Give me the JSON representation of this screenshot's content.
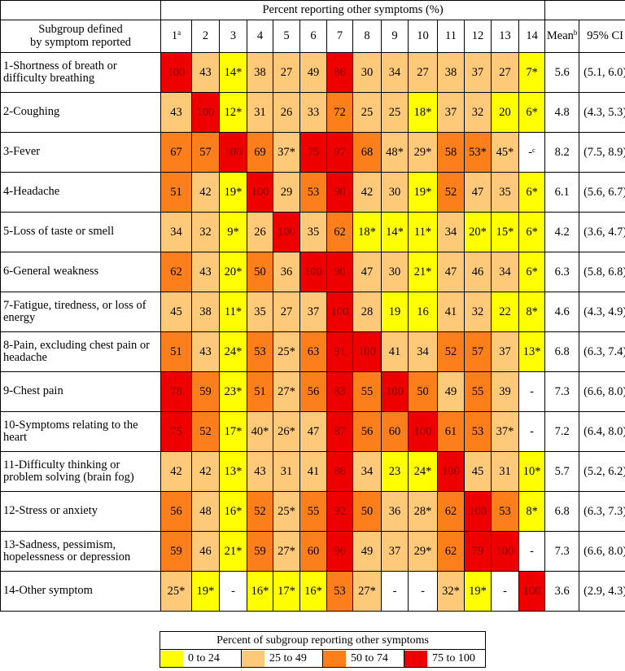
{
  "header": {
    "spanning_title": "Percent reporting other symptoms (%)",
    "row_header_line1": "Subgroup defined",
    "row_header_line2": "by symptom reported",
    "col1": "1",
    "col1_sup": "a",
    "cols": [
      "2",
      "3",
      "4",
      "5",
      "6",
      "7",
      "8",
      "9",
      "10",
      "11",
      "12",
      "13",
      "14"
    ],
    "mean_label": "Mean",
    "mean_sup": "b",
    "ci_label": "95% CI"
  },
  "rows": [
    {
      "label": "1-Shortness of breath or difficulty breathing",
      "cells": [
        "100",
        "43",
        "14*",
        "38",
        "27",
        "49",
        "86",
        "30",
        "34",
        "27",
        "38",
        "37",
        "27",
        "7*"
      ],
      "colors": [
        "r",
        "l",
        "y",
        "l",
        "l",
        "l",
        "r",
        "l",
        "l",
        "l",
        "l",
        "l",
        "l",
        "y"
      ],
      "mean": "5.6",
      "ci": "(5.1, 6.0)"
    },
    {
      "label": "2-Coughing",
      "cells": [
        "43",
        "100",
        "12*",
        "31",
        "26",
        "33",
        "72",
        "25",
        "25",
        "18*",
        "37",
        "32",
        "20",
        "6*"
      ],
      "colors": [
        "l",
        "r",
        "y",
        "l",
        "l",
        "l",
        "o",
        "l",
        "l",
        "y",
        "l",
        "l",
        "y",
        "y"
      ],
      "mean": "4.8",
      "ci": "(4.3, 5.3)"
    },
    {
      "label": "3-Fever",
      "cells": [
        "67",
        "57",
        "100",
        "69",
        "37*",
        "75",
        "97",
        "68",
        "48*",
        "29*",
        "58",
        "53*",
        "45*",
        "-ᶜ"
      ],
      "colors": [
        "o",
        "o",
        "r",
        "o",
        "l",
        "r",
        "r",
        "o",
        "l",
        "l",
        "o",
        "o",
        "l",
        "w"
      ],
      "mean": "8.2",
      "ci": "(7.5, 8.9)"
    },
    {
      "label": "4-Headache",
      "cells": [
        "51",
        "42",
        "19*",
        "100",
        "29",
        "53",
        "90",
        "42",
        "30",
        "19*",
        "52",
        "47",
        "35",
        "6*"
      ],
      "colors": [
        "o",
        "l",
        "y",
        "r",
        "l",
        "o",
        "r",
        "l",
        "l",
        "y",
        "o",
        "l",
        "l",
        "y"
      ],
      "mean": "6.1",
      "ci": "(5.6, 6.7)"
    },
    {
      "label": "5-Loss of taste or smell",
      "cells": [
        "34",
        "32",
        "9*",
        "26",
        "100",
        "35",
        "62",
        "18*",
        "14*",
        "11*",
        "34",
        "20*",
        "15*",
        "6*"
      ],
      "colors": [
        "l",
        "l",
        "y",
        "l",
        "r",
        "l",
        "o",
        "y",
        "y",
        "y",
        "l",
        "y",
        "y",
        "y"
      ],
      "mean": "4.2",
      "ci": "(3.6, 4.7)"
    },
    {
      "label": "6-General weakness",
      "cells": [
        "62",
        "43",
        "20*",
        "50",
        "36",
        "100",
        "90",
        "47",
        "30",
        "21*",
        "47",
        "46",
        "34",
        "6*"
      ],
      "colors": [
        "o",
        "l",
        "y",
        "o",
        "l",
        "r",
        "r",
        "l",
        "l",
        "y",
        "l",
        "l",
        "l",
        "y"
      ],
      "mean": "6.3",
      "ci": "(5.8, 6.8)"
    },
    {
      "label": "7-Fatigue, tiredness, or loss of energy",
      "cells": [
        "45",
        "38",
        "11*",
        "35",
        "27",
        "37",
        "100",
        "28",
        "19",
        "16",
        "41",
        "32",
        "22",
        "8*"
      ],
      "colors": [
        "l",
        "l",
        "y",
        "l",
        "l",
        "l",
        "r",
        "l",
        "y",
        "y",
        "l",
        "l",
        "y",
        "y"
      ],
      "mean": "4.6",
      "ci": "(4.3, 4.9)"
    },
    {
      "label": "8-Pain, excluding chest pain or headache",
      "cells": [
        "51",
        "43",
        "24*",
        "53",
        "25*",
        "63",
        "91",
        "100",
        "41",
        "34",
        "52",
        "57",
        "37",
        "13*"
      ],
      "colors": [
        "o",
        "l",
        "y",
        "o",
        "l",
        "o",
        "r",
        "r",
        "l",
        "l",
        "o",
        "o",
        "l",
        "y"
      ],
      "mean": "6.8",
      "ci": "(6.3, 7.4)"
    },
    {
      "label": "9-Chest pain",
      "cells": [
        "78",
        "59",
        "23*",
        "51",
        "27*",
        "56",
        "83",
        "55",
        "100",
        "50",
        "49",
        "55",
        "39",
        "-"
      ],
      "colors": [
        "r",
        "o",
        "y",
        "o",
        "l",
        "o",
        "r",
        "o",
        "r",
        "o",
        "l",
        "o",
        "l",
        "w"
      ],
      "mean": "7.3",
      "ci": "(6.6, 8.0)"
    },
    {
      "label": "10-Symptoms relating to the heart",
      "cells": [
        "75",
        "52",
        "17*",
        "40*",
        "26*",
        "47",
        "87",
        "56",
        "60",
        "100",
        "61",
        "53",
        "37*",
        "-"
      ],
      "colors": [
        "r",
        "o",
        "y",
        "l",
        "l",
        "l",
        "r",
        "o",
        "o",
        "r",
        "o",
        "o",
        "l",
        "w"
      ],
      "mean": "7.2",
      "ci": "(6.4, 8.0)"
    },
    {
      "label": "11-Difficulty thinking or problem solving (brain fog)",
      "cells": [
        "42",
        "42",
        "13*",
        "43",
        "31",
        "41",
        "86",
        "34",
        "23",
        "24*",
        "100",
        "45",
        "31",
        "10*"
      ],
      "colors": [
        "l",
        "l",
        "y",
        "l",
        "l",
        "l",
        "r",
        "l",
        "y",
        "y",
        "r",
        "l",
        "l",
        "y"
      ],
      "mean": "5.7",
      "ci": "(5.2, 6.2)"
    },
    {
      "label": "12-Stress or anxiety",
      "cells": [
        "56",
        "48",
        "16*",
        "52",
        "25*",
        "55",
        "92",
        "50",
        "36",
        "28*",
        "62",
        "100",
        "53",
        "8*"
      ],
      "colors": [
        "o",
        "l",
        "y",
        "o",
        "l",
        "o",
        "r",
        "o",
        "l",
        "l",
        "o",
        "r",
        "o",
        "y"
      ],
      "mean": "6.8",
      "ci": "(6.3, 7.3)"
    },
    {
      "label": "13-Sadness, pessimism, hopelessness or depression",
      "cells": [
        "59",
        "46",
        "21*",
        "59",
        "27*",
        "60",
        "96",
        "49",
        "37",
        "29*",
        "62",
        "79",
        "100",
        "-"
      ],
      "colors": [
        "o",
        "l",
        "y",
        "o",
        "l",
        "o",
        "r",
        "l",
        "l",
        "l",
        "o",
        "r",
        "r",
        "w"
      ],
      "mean": "7.3",
      "ci": "(6.6, 8.0)"
    },
    {
      "label": "14-Other symptom",
      "cells": [
        "25*",
        "19*",
        "-",
        "16*",
        "17*",
        "16*",
        "53",
        "27*",
        "-",
        "-",
        "32*",
        "19*",
        "-",
        "100"
      ],
      "colors": [
        "l",
        "y",
        "w",
        "y",
        "y",
        "y",
        "o",
        "l",
        "w",
        "w",
        "l",
        "y",
        "w",
        "r"
      ],
      "mean": "3.6",
      "ci": "(2.9, 4.3)"
    }
  ],
  "legend": {
    "title": "Percent of subgroup reporting other symptoms",
    "items": [
      {
        "label": "0 to 24",
        "color": "#ffff00"
      },
      {
        "label": "25 to 49",
        "color": "#ffc97a"
      },
      {
        "label": "50 to 74",
        "color": "#fd7f1c"
      },
      {
        "label": "75 to 100",
        "color": "#ee0000"
      }
    ]
  }
}
